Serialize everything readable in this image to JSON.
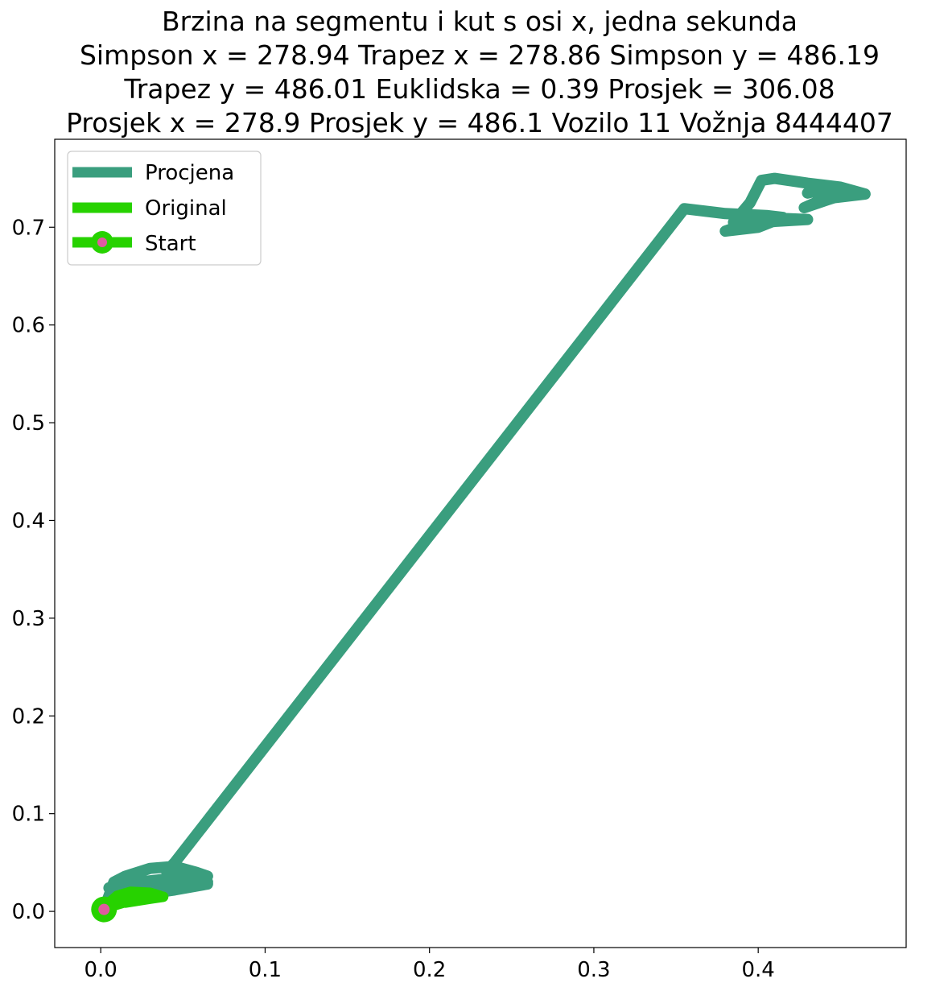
{
  "chart_data": {
    "type": "line",
    "title_lines": [
      "Brzina na segmentu i kut s osi x, jedna sekunda",
      "Simpson x = 278.94 Trapez x = 278.86 Simpson y = 486.19",
      "Trapez y = 486.01 Euklidska = 0.39 Prosjek = 306.08",
      "Prosjek x = 278.9 Prosjek y = 486.1 Vozilo 11 Vožnja 8444407"
    ],
    "xlim": [
      -0.028,
      0.49
    ],
    "ylim": [
      -0.037,
      0.79
    ],
    "x_ticks": [
      {
        "value": 0.0,
        "label": "0.0"
      },
      {
        "value": 0.1,
        "label": "0.1"
      },
      {
        "value": 0.2,
        "label": "0.2"
      },
      {
        "value": 0.3,
        "label": "0.3"
      },
      {
        "value": 0.4,
        "label": "0.4"
      }
    ],
    "y_ticks": [
      {
        "value": 0.0,
        "label": "0.0"
      },
      {
        "value": 0.1,
        "label": "0.1"
      },
      {
        "value": 0.2,
        "label": "0.2"
      },
      {
        "value": 0.3,
        "label": "0.3"
      },
      {
        "value": 0.4,
        "label": "0.4"
      },
      {
        "value": 0.5,
        "label": "0.5"
      },
      {
        "value": 0.6,
        "label": "0.6"
      },
      {
        "value": 0.7,
        "label": "0.7"
      }
    ],
    "legend_position": "upper-left",
    "series": [
      {
        "name": "Procjena",
        "color": "#3a9e7e",
        "points": [
          [
            0.002,
            0.002
          ],
          [
            0.008,
            0.03
          ],
          [
            0.015,
            0.036
          ],
          [
            0.03,
            0.044
          ],
          [
            0.045,
            0.046
          ],
          [
            0.058,
            0.04
          ],
          [
            0.065,
            0.036
          ],
          [
            0.05,
            0.032
          ],
          [
            0.02,
            0.03
          ],
          [
            0.005,
            0.024
          ],
          [
            0.012,
            0.028
          ],
          [
            0.04,
            0.033
          ],
          [
            0.065,
            0.03
          ],
          [
            0.05,
            0.025
          ],
          [
            0.025,
            0.02
          ],
          [
            0.008,
            0.012
          ],
          [
            0.004,
            0.005
          ],
          [
            0.02,
            0.016
          ],
          [
            0.045,
            0.022
          ],
          [
            0.065,
            0.028
          ],
          [
            0.06,
            0.038
          ],
          [
            0.04,
            0.041
          ],
          [
            0.045,
            0.05
          ],
          [
            0.355,
            0.719
          ],
          [
            0.38,
            0.714
          ],
          [
            0.405,
            0.712
          ],
          [
            0.415,
            0.71
          ],
          [
            0.4,
            0.7
          ],
          [
            0.38,
            0.696
          ],
          [
            0.39,
            0.702
          ],
          [
            0.41,
            0.706
          ],
          [
            0.43,
            0.708
          ],
          [
            0.4,
            0.71
          ],
          [
            0.385,
            0.705
          ],
          [
            0.395,
            0.725
          ],
          [
            0.402,
            0.748
          ],
          [
            0.41,
            0.75
          ],
          [
            0.43,
            0.745
          ],
          [
            0.45,
            0.741
          ],
          [
            0.465,
            0.734
          ],
          [
            0.44,
            0.729
          ],
          [
            0.428,
            0.72
          ],
          [
            0.442,
            0.728
          ],
          [
            0.455,
            0.735
          ],
          [
            0.44,
            0.739
          ],
          [
            0.43,
            0.735
          ]
        ]
      },
      {
        "name": "Original",
        "color": "#27d200",
        "points": [
          [
            0.002,
            0.002
          ],
          [
            0.008,
            0.006
          ],
          [
            0.018,
            0.011
          ],
          [
            0.028,
            0.014
          ],
          [
            0.036,
            0.016
          ],
          [
            0.03,
            0.019
          ],
          [
            0.018,
            0.02
          ],
          [
            0.01,
            0.016
          ],
          [
            0.006,
            0.01
          ],
          [
            0.015,
            0.009
          ],
          [
            0.03,
            0.013
          ],
          [
            0.038,
            0.015
          ]
        ]
      },
      {
        "name": "Start",
        "color": "#27d200",
        "marker_fill": "#e05aa0",
        "points": [
          [
            0.002,
            0.002
          ]
        ]
      }
    ]
  }
}
